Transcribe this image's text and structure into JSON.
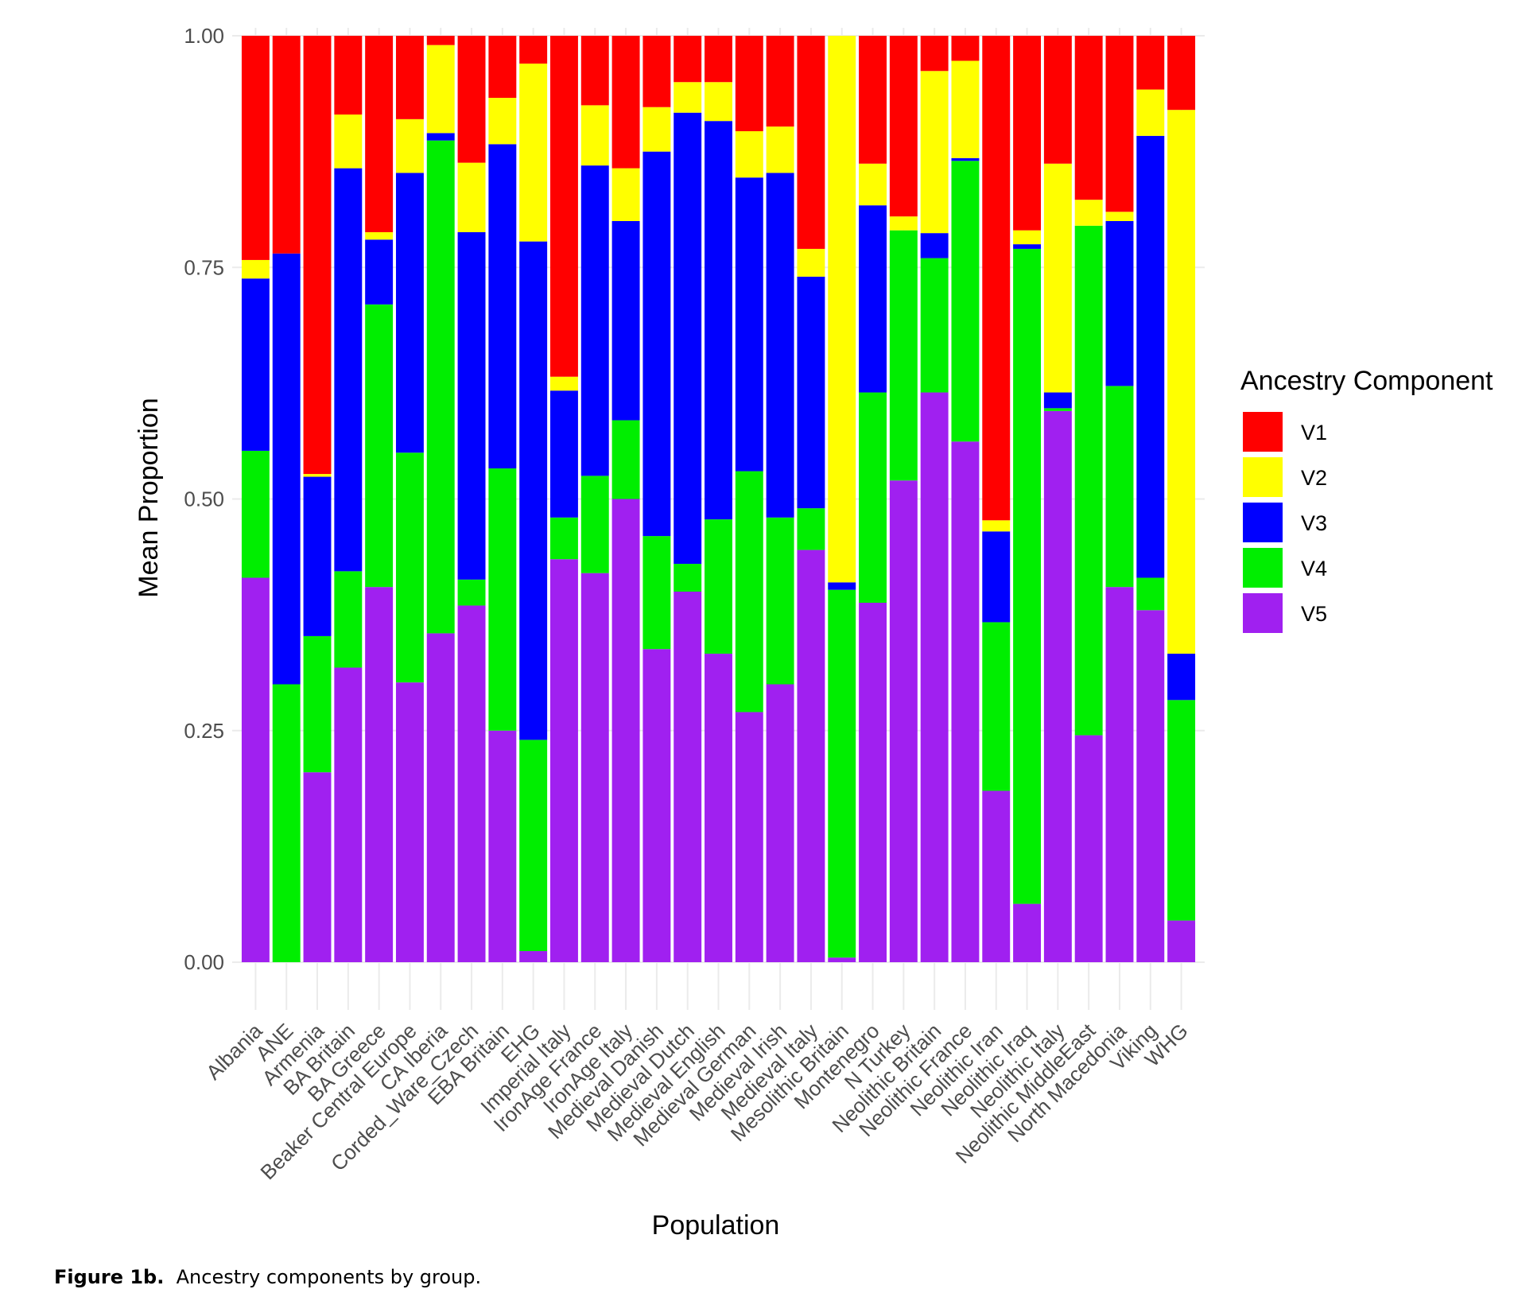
{
  "caption": {
    "label": "Figure 1b.",
    "text": "Ancestry components by group."
  },
  "chart_data": {
    "type": "bar",
    "stacked": true,
    "xlabel": "Population",
    "ylabel": "Mean Proportion",
    "ylim": [
      0,
      1
    ],
    "yticks": [
      "0.00",
      "0.25",
      "0.50",
      "0.75",
      "1.00"
    ],
    "grid": true,
    "legend": {
      "title": "Ancestry Component",
      "position": "right"
    },
    "colors": {
      "V1": "#ff0000",
      "V2": "#ffff00",
      "V3": "#0000ff",
      "V4": "#00ee00",
      "V5": "#a020f0"
    },
    "categories": [
      "Albania",
      "ANE",
      "Armenia",
      "BA Britain",
      "BA Greece",
      "Beaker Central Europe",
      "CA Iberia",
      "Corded_Ware_Czech",
      "EBA Britain",
      "EHG",
      "Imperial Italy",
      "IronAge France",
      "IronAge Italy",
      "Medieval Danish",
      "Medieval Dutch",
      "Medieval English",
      "Medieval German",
      "Medieval Irish",
      "Medieval Italy",
      "Mesolithic Britain",
      "Montenegro",
      "N Turkey",
      "Neolithic Britain",
      "Neolithic France",
      "Neolithic Iran",
      "Neolithic Iraq",
      "Neolithic Italy",
      "Neolithic MiddleEast",
      "North Macedonia",
      "Viking",
      "WHG"
    ],
    "series": [
      {
        "name": "V5",
        "values": [
          0.415,
          0.0,
          0.205,
          0.318,
          0.405,
          0.302,
          0.355,
          0.385,
          0.25,
          0.012,
          0.435,
          0.42,
          0.5,
          0.338,
          0.4,
          0.333,
          0.27,
          0.3,
          0.445,
          0.005,
          0.388,
          0.52,
          0.615,
          0.562,
          0.185,
          0.063,
          0.595,
          0.245,
          0.405,
          0.38,
          0.045
        ]
      },
      {
        "name": "V4",
        "values": [
          0.137,
          0.3,
          0.147,
          0.104,
          0.305,
          0.248,
          0.532,
          0.028,
          0.283,
          0.228,
          0.045,
          0.105,
          0.085,
          0.122,
          0.03,
          0.145,
          0.26,
          0.18,
          0.045,
          0.397,
          0.227,
          0.27,
          0.145,
          0.303,
          0.182,
          0.707,
          0.003,
          0.55,
          0.217,
          0.035,
          0.238
        ]
      },
      {
        "name": "V3",
        "values": [
          0.186,
          0.465,
          0.172,
          0.435,
          0.07,
          0.302,
          0.008,
          0.375,
          0.35,
          0.538,
          0.137,
          0.335,
          0.215,
          0.415,
          0.487,
          0.43,
          0.317,
          0.372,
          0.25,
          0.008,
          0.202,
          0.0,
          0.027,
          0.003,
          0.098,
          0.005,
          0.017,
          0.0,
          0.178,
          0.477,
          0.05
        ]
      },
      {
        "name": "V2",
        "values": [
          0.02,
          0.0,
          0.003,
          0.058,
          0.008,
          0.058,
          0.095,
          0.075,
          0.05,
          0.192,
          0.015,
          0.065,
          0.057,
          0.048,
          0.033,
          0.042,
          0.05,
          0.05,
          0.03,
          0.59,
          0.045,
          0.015,
          0.175,
          0.105,
          0.012,
          0.015,
          0.247,
          0.028,
          0.01,
          0.05,
          0.587
        ]
      },
      {
        "name": "V1",
        "values": [
          0.242,
          0.235,
          0.473,
          0.085,
          0.212,
          0.09,
          0.01,
          0.137,
          0.067,
          0.03,
          0.368,
          0.075,
          0.143,
          0.077,
          0.05,
          0.05,
          0.103,
          0.098,
          0.23,
          0.0,
          0.138,
          0.195,
          0.038,
          0.027,
          0.523,
          0.21,
          0.138,
          0.177,
          0.19,
          0.058,
          0.08
        ]
      }
    ]
  }
}
